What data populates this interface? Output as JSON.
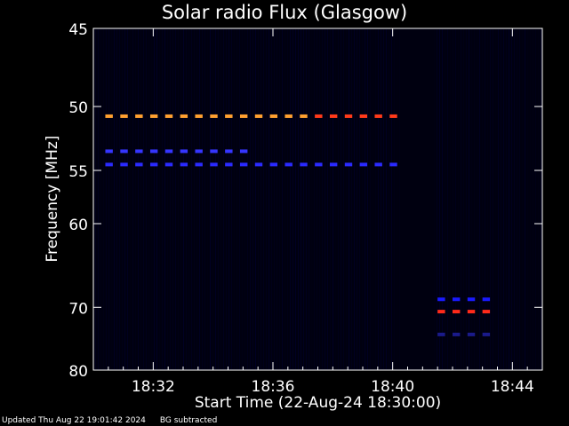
{
  "chart_data": {
    "type": "heatmap",
    "title": "Solar radio Flux (Glasgow)",
    "xlabel": "Start Time (22-Aug-24 18:30:00)",
    "ylabel": "Frequency [MHz]",
    "xlim": [
      0,
      15
    ],
    "ylim": [
      45,
      80
    ],
    "x_ticks": [
      {
        "t": 2,
        "label": "18:32"
      },
      {
        "t": 6,
        "label": "18:36"
      },
      {
        "t": 10,
        "label": "18:40"
      },
      {
        "t": 14,
        "label": "18:44"
      }
    ],
    "y_ticks": [
      45,
      50,
      55,
      60,
      70,
      80
    ],
    "grid": false,
    "background": "#000000",
    "emission_bands": [
      {
        "freq_mhz": 50.7,
        "t_start": 0.4,
        "t_end": 10.2,
        "color": "#ffa030",
        "hot_color": "#ff3a1a",
        "hot_from": 7.0
      },
      {
        "freq_mhz": 53.4,
        "t_start": 0.4,
        "t_end": 5.0,
        "color": "#3535ff"
      },
      {
        "freq_mhz": 54.5,
        "t_start": 0.4,
        "t_end": 10.2,
        "color": "#2a2aff"
      },
      {
        "freq_mhz": 68.9,
        "t_start": 11.5,
        "t_end": 13.5,
        "color": "#1a1aff"
      },
      {
        "freq_mhz": 70.6,
        "t_start": 11.5,
        "t_end": 13.5,
        "color": "#ffa030",
        "hot_color": "#ff2a1a",
        "hot_from": 11.5
      },
      {
        "freq_mhz": 74.0,
        "t_start": 11.5,
        "t_end": 13.5,
        "color": "#1a1a8a"
      }
    ],
    "data_gap": {
      "t_start": 10.3,
      "t_end": 11.3
    }
  },
  "footer": {
    "updated": "Updated Thu Aug 22 19:01:42 2024",
    "note": "BG subtracted"
  }
}
